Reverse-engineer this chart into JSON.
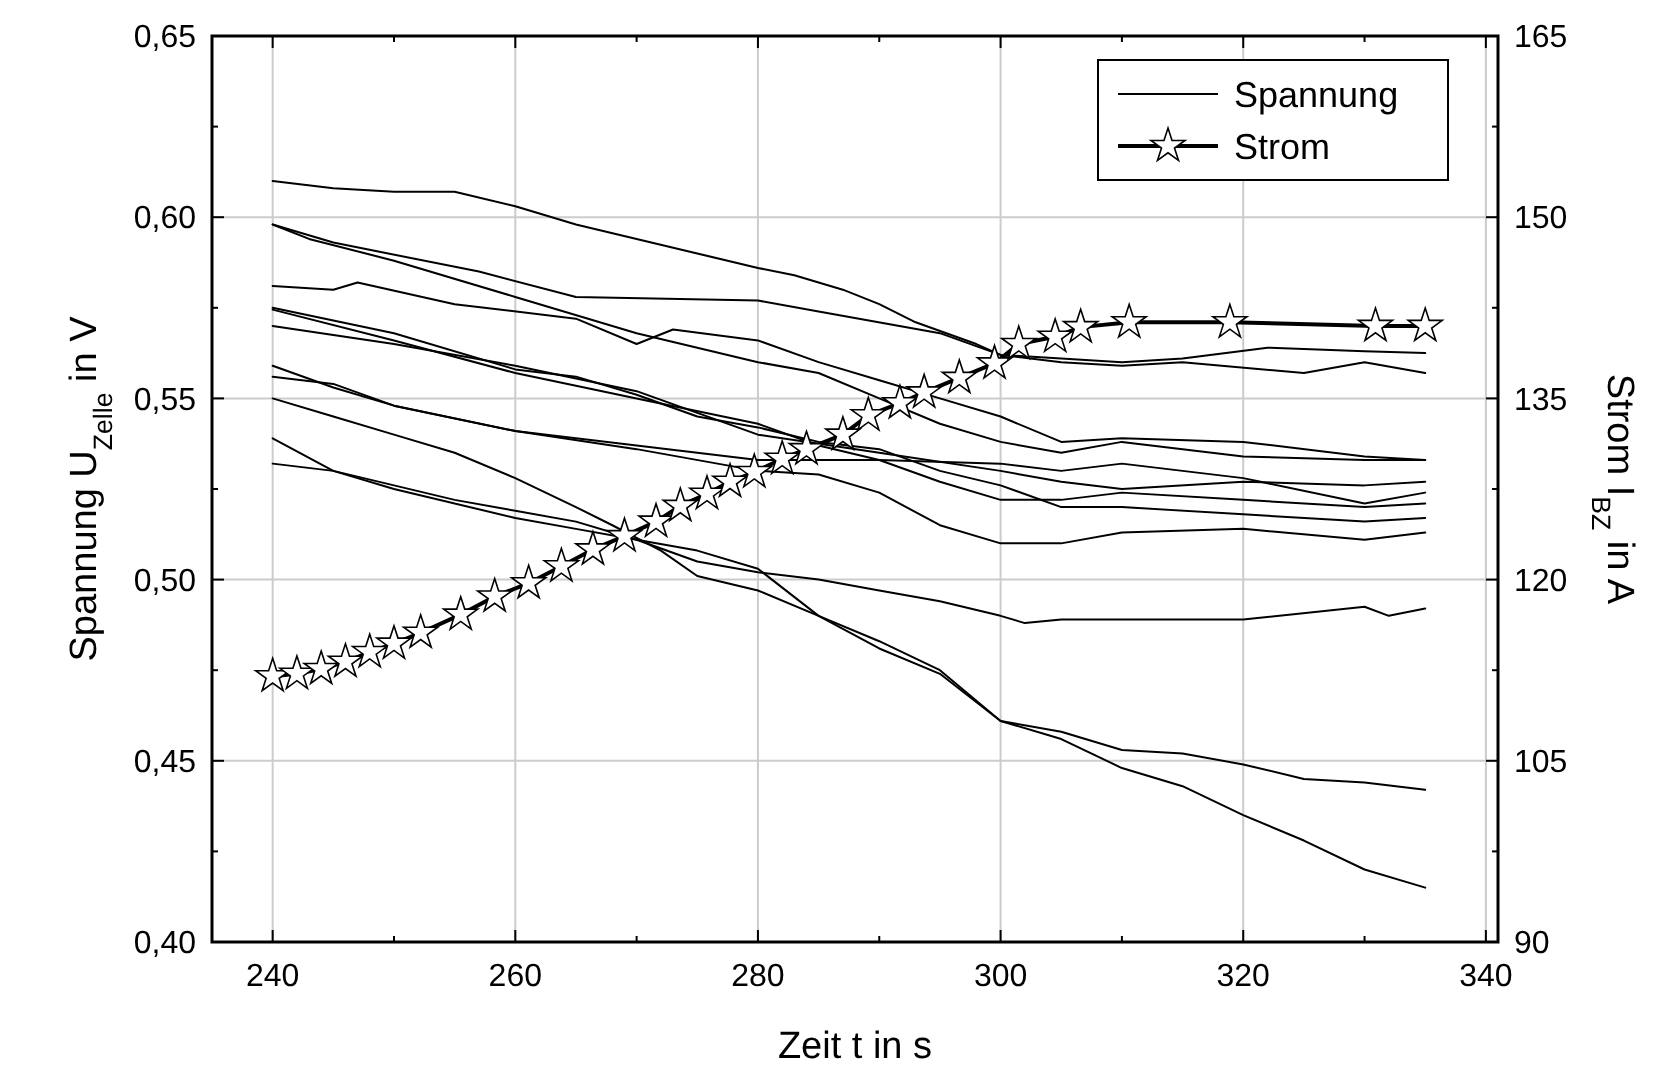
{
  "chart_data": {
    "type": "line",
    "xlabel": "Zeit t in s",
    "ylabel": "Spannung U$_{Zelle}$ in V",
    "y2label": "Strom I$_{BZ}$ in A",
    "xlim": [
      235,
      341
    ],
    "xticks": [
      240,
      {
        "value": 250,
        "label": null
      },
      260,
      {
        "value": 270,
        "label": null
      },
      280,
      {
        "value": 290,
        "label": null
      },
      300,
      {
        "value": 310,
        "label": null
      },
      320,
      {
        "value": 330,
        "label": null
      },
      340
    ],
    "ylim": [
      0.4,
      0.65
    ],
    "yticks": [
      {
        "value": 0.4,
        "label": "0,40"
      },
      {
        "value": 0.425,
        "label": null
      },
      {
        "value": 0.45,
        "label": "0,45"
      },
      {
        "value": 0.475,
        "label": null
      },
      {
        "value": 0.5,
        "label": "0,50"
      },
      {
        "value": 0.525,
        "label": null
      },
      {
        "value": 0.55,
        "label": "0,55"
      },
      {
        "value": 0.575,
        "label": null
      },
      {
        "value": 0.6,
        "label": "0,60"
      },
      {
        "value": 0.625,
        "label": null
      },
      {
        "value": 0.65,
        "label": "0,65"
      }
    ],
    "y2lim": [
      90,
      165
    ],
    "y2ticks": [
      90,
      {
        "value": 97.5,
        "label": null
      },
      105,
      {
        "value": 112.5,
        "label": null
      },
      120,
      {
        "value": 127.5,
        "label": null
      },
      135,
      {
        "value": 142.5,
        "label": null
      },
      150,
      {
        "value": 157.5,
        "label": null
      },
      165
    ],
    "grid": true,
    "legend": "top right",
    "line_style": "solid",
    "series": [
      {
        "name": "Spannung",
        "color": "#000000",
        "marker": "none",
        "x": [
          240,
          245,
          250,
          255,
          260,
          265,
          270,
          275,
          280,
          283,
          287,
          290,
          293,
          298,
          300,
          305,
          310,
          315,
          322,
          330,
          335
        ],
        "values": [
          0.61,
          0.608,
          0.607,
          0.607,
          0.603,
          0.598,
          0.594,
          0.59,
          0.586,
          0.584,
          0.58,
          0.576,
          0.571,
          0.565,
          0.562,
          0.561,
          0.56,
          0.561,
          0.564,
          0.563,
          0.5625
        ]
      },
      {
        "color": "#000000",
        "marker": "none",
        "x": [
          240,
          245,
          257,
          265,
          280,
          285,
          295,
          300,
          305,
          310,
          315,
          325,
          330,
          335
        ],
        "values": [
          0.598,
          0.593,
          0.585,
          0.578,
          0.577,
          0.574,
          0.568,
          0.562,
          0.56,
          0.559,
          0.56,
          0.557,
          0.56,
          0.557
        ]
      },
      {
        "color": "#000000",
        "marker": "none",
        "x": [
          240,
          243,
          250,
          260,
          270,
          280,
          285,
          290,
          295,
          300,
          305,
          310,
          320,
          330,
          335
        ],
        "values": [
          0.598,
          0.594,
          0.588,
          0.578,
          0.568,
          0.56,
          0.557,
          0.55,
          0.543,
          0.538,
          0.535,
          0.538,
          0.534,
          0.533,
          0.533
        ]
      },
      {
        "color": "#000000",
        "marker": "none",
        "x": [
          240,
          245,
          247,
          255,
          265,
          270,
          273,
          280,
          285,
          290,
          295,
          300,
          305,
          310,
          320,
          330,
          335
        ],
        "values": [
          0.581,
          0.58,
          0.582,
          0.576,
          0.572,
          0.565,
          0.569,
          0.566,
          0.56,
          0.555,
          0.55,
          0.545,
          0.538,
          0.539,
          0.538,
          0.534,
          0.533
        ]
      },
      {
        "color": "#000000",
        "marker": "none",
        "x": [
          240,
          250,
          260,
          265,
          270,
          275,
          280,
          285,
          290,
          295,
          300,
          305,
          310,
          320,
          330,
          335
        ],
        "values": [
          0.575,
          0.568,
          0.558,
          0.556,
          0.551,
          0.545,
          0.542,
          0.538,
          0.536,
          0.53,
          0.526,
          0.52,
          0.52,
          0.518,
          0.516,
          0.517
        ]
      },
      {
        "color": "#000000",
        "marker": "none",
        "x": [
          240,
          250,
          260,
          270,
          280,
          285,
          290,
          295,
          300,
          305,
          310,
          320,
          330,
          335
        ],
        "values": [
          0.5745,
          0.566,
          0.557,
          0.55,
          0.543,
          0.537,
          0.533,
          0.527,
          0.522,
          0.522,
          0.524,
          0.522,
          0.52,
          0.521
        ]
      },
      {
        "color": "#000000",
        "marker": "none",
        "x": [
          240,
          250,
          260,
          270,
          280,
          290,
          300,
          305,
          310,
          320,
          330,
          335
        ],
        "values": [
          0.57,
          0.565,
          0.559,
          0.552,
          0.54,
          0.535,
          0.53,
          0.527,
          0.525,
          0.527,
          0.526,
          0.527
        ]
      },
      {
        "color": "#000000",
        "marker": "none",
        "x": [
          240,
          245,
          250,
          260,
          270,
          280,
          285,
          290,
          300,
          305,
          310,
          320,
          330,
          335
        ],
        "values": [
          0.559,
          0.553,
          0.548,
          0.541,
          0.537,
          0.533,
          0.533,
          0.533,
          0.532,
          0.53,
          0.532,
          0.528,
          0.521,
          0.524
        ]
      },
      {
        "color": "#000000",
        "marker": "none",
        "x": [
          240,
          245,
          250,
          260,
          270,
          280,
          285,
          290,
          295,
          300,
          305,
          310,
          320,
          330,
          335
        ],
        "values": [
          0.556,
          0.554,
          0.548,
          0.541,
          0.536,
          0.53,
          0.529,
          0.524,
          0.515,
          0.51,
          0.51,
          0.513,
          0.514,
          0.511,
          0.513
        ]
      },
      {
        "color": "#000000",
        "marker": "none",
        "x": [
          240,
          245,
          250,
          255,
          260,
          265,
          268,
          272,
          275,
          280,
          285,
          290,
          295,
          300,
          305,
          310,
          315,
          320,
          325,
          330,
          335
        ],
        "values": [
          0.55,
          0.545,
          0.54,
          0.535,
          0.528,
          0.52,
          0.515,
          0.508,
          0.501,
          0.497,
          0.49,
          0.483,
          0.475,
          0.461,
          0.458,
          0.453,
          0.452,
          0.449,
          0.445,
          0.444,
          0.442
        ]
      },
      {
        "color": "#000000",
        "marker": "none",
        "x": [
          240,
          245,
          250,
          260,
          265,
          270,
          275,
          280,
          285,
          290,
          295,
          300,
          302,
          305,
          310,
          320,
          330,
          332,
          335
        ],
        "values": [
          0.539,
          0.53,
          0.525,
          0.517,
          0.514,
          0.511,
          0.505,
          0.502,
          0.5,
          0.497,
          0.494,
          0.49,
          0.488,
          0.489,
          0.489,
          0.489,
          0.4925,
          0.49,
          0.492
        ]
      },
      {
        "color": "#000000",
        "marker": "none",
        "x": [
          240,
          245,
          250,
          255,
          260,
          265,
          270,
          275,
          280,
          285,
          290,
          295,
          300,
          305,
          310,
          315,
          320,
          325,
          330,
          335
        ],
        "values": [
          0.532,
          0.53,
          0.526,
          0.522,
          0.519,
          0.516,
          0.511,
          0.508,
          0.503,
          0.49,
          0.481,
          0.474,
          0.461,
          0.456,
          0.448,
          0.443,
          0.435,
          0.428,
          0.42,
          0.415
        ]
      },
      {
        "name": "Strom",
        "color": "#000000",
        "axis": "y2",
        "marker": "star",
        "x": [
          240,
          242,
          244,
          246,
          248,
          250,
          252.2,
          255.5,
          258.3,
          261.1,
          263.8,
          266.4,
          269,
          271.6,
          273.6,
          275.8,
          277.7,
          279.7,
          282,
          284,
          287,
          289.1,
          291.7,
          293.7,
          296.6,
          299.5,
          301.5,
          304.5,
          306.6,
          310.6,
          318.9,
          330.9,
          335
        ],
        "values": [
          112.0,
          112.2,
          112.6,
          113.2,
          114.0,
          114.7,
          115.6,
          117.1,
          118.6,
          119.7,
          121.1,
          122.5,
          123.6,
          124.8,
          126.1,
          127.1,
          128.1,
          128.9,
          130.0,
          130.8,
          132.0,
          133.6,
          134.6,
          135.5,
          136.7,
          137.9,
          139.5,
          140.1,
          140.9,
          141.3,
          141.3,
          141.0,
          141.0
        ]
      }
    ]
  }
}
